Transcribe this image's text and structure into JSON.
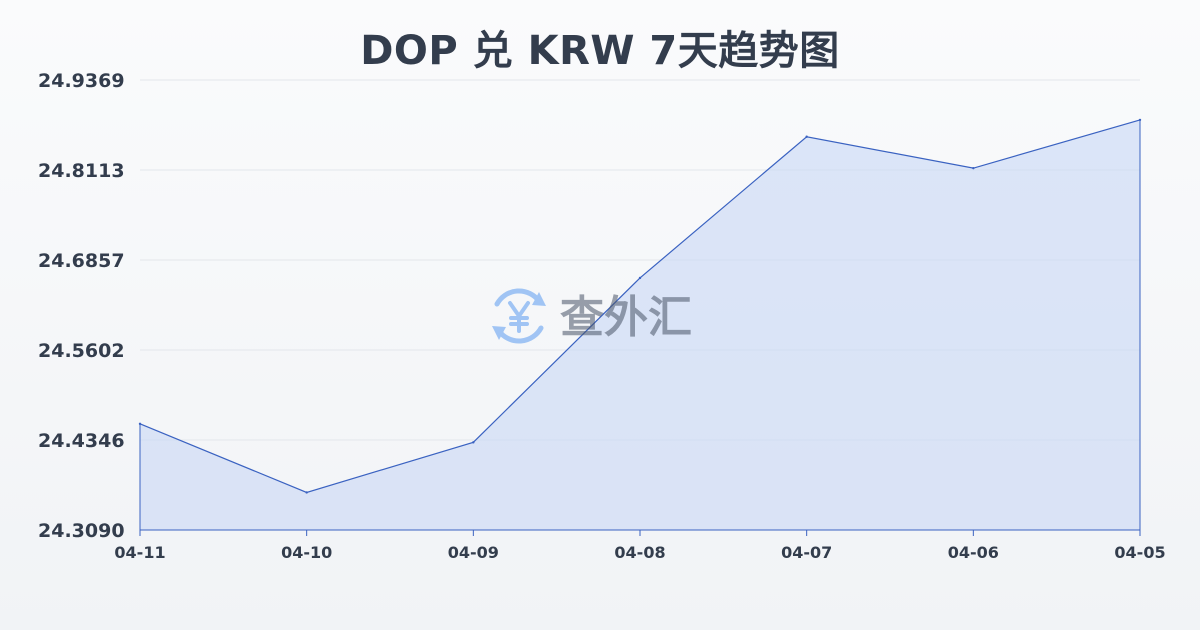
{
  "chart_data": {
    "type": "area",
    "title": "DOP 兑 KRW 7天趋势图",
    "xlabel": "",
    "ylabel": "",
    "categories": [
      "04-11",
      "04-10",
      "04-09",
      "04-08",
      "04-07",
      "04-06",
      "04-05"
    ],
    "values": [
      24.4571,
      24.3614,
      24.4313,
      24.6607,
      24.8577,
      24.8139,
      24.8812
    ],
    "yticks": [
      "24.9369",
      "24.8113",
      "24.6857",
      "24.5602",
      "24.4346",
      "24.3090"
    ],
    "ylim": [
      24.309,
      24.9369
    ],
    "grid": true,
    "legend": "none",
    "colors": {
      "line": "#3a62c1",
      "fill": "#c9d8f5",
      "grid": "#e3e6eb",
      "text": "#333d4d"
    }
  },
  "watermark": {
    "text": "查外汇",
    "icon": "yen-exchange-icon",
    "icon_color": "#5b9cf0",
    "text_color": "#4a5568"
  }
}
